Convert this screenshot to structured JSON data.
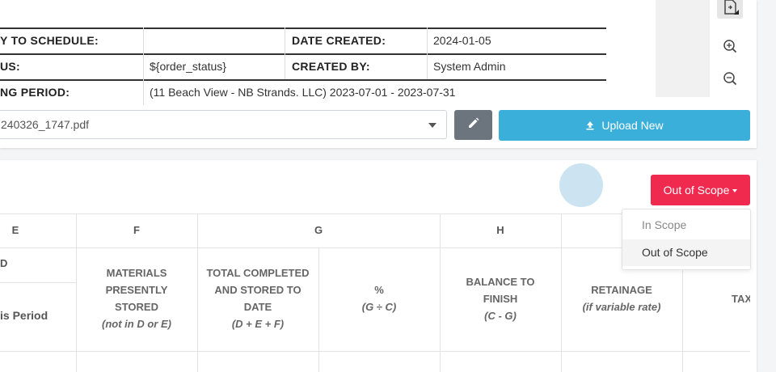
{
  "info": {
    "rows": [
      {
        "label1": "Y TO SCHEDULE:",
        "value1": "",
        "label2": "DATE CREATED:",
        "value2": "2024-01-05"
      },
      {
        "label1": "US:",
        "value1": "${order_status}",
        "label2": "CREATED BY:",
        "value2": "System Admin"
      },
      {
        "label1": "NG PERIOD:",
        "value1": "(11 Beach View - NB Strands. LLC) 2023-07-01 - 2023-07-31"
      }
    ]
  },
  "file": {
    "selected": "240326_1747.pdf"
  },
  "upload": {
    "label": "Upload New"
  },
  "scope": {
    "button_label": "Out of Scope",
    "options": [
      "In Scope",
      "Out of Scope"
    ]
  },
  "table": {
    "columns": [
      "E",
      "F",
      "G",
      "H"
    ],
    "partial_col": "D",
    "e_sub": "is Period",
    "f_header": {
      "lines": [
        "MATERIALS",
        "PRESENTLY",
        "STORED"
      ],
      "sub": "(not in D or E)"
    },
    "g_header": {
      "lines": [
        "TOTAL COMPLETED",
        "AND STORED TO",
        "DATE"
      ],
      "sub": "(D + E + F)"
    },
    "pct_header": {
      "lines": [
        "%"
      ],
      "sub": "(G ÷ C)"
    },
    "h_header": {
      "lines": [
        "BALANCE TO",
        "FINISH"
      ],
      "sub": "(C - G)"
    },
    "ret_header": {
      "lines": [
        "RETAINAGE"
      ],
      "sub": "(if variable rate)"
    },
    "tax_header": "TAX"
  },
  "colors": {
    "accent_blue": "#3aafd9",
    "danger": "#f0294f",
    "secondary": "#6c757d"
  }
}
